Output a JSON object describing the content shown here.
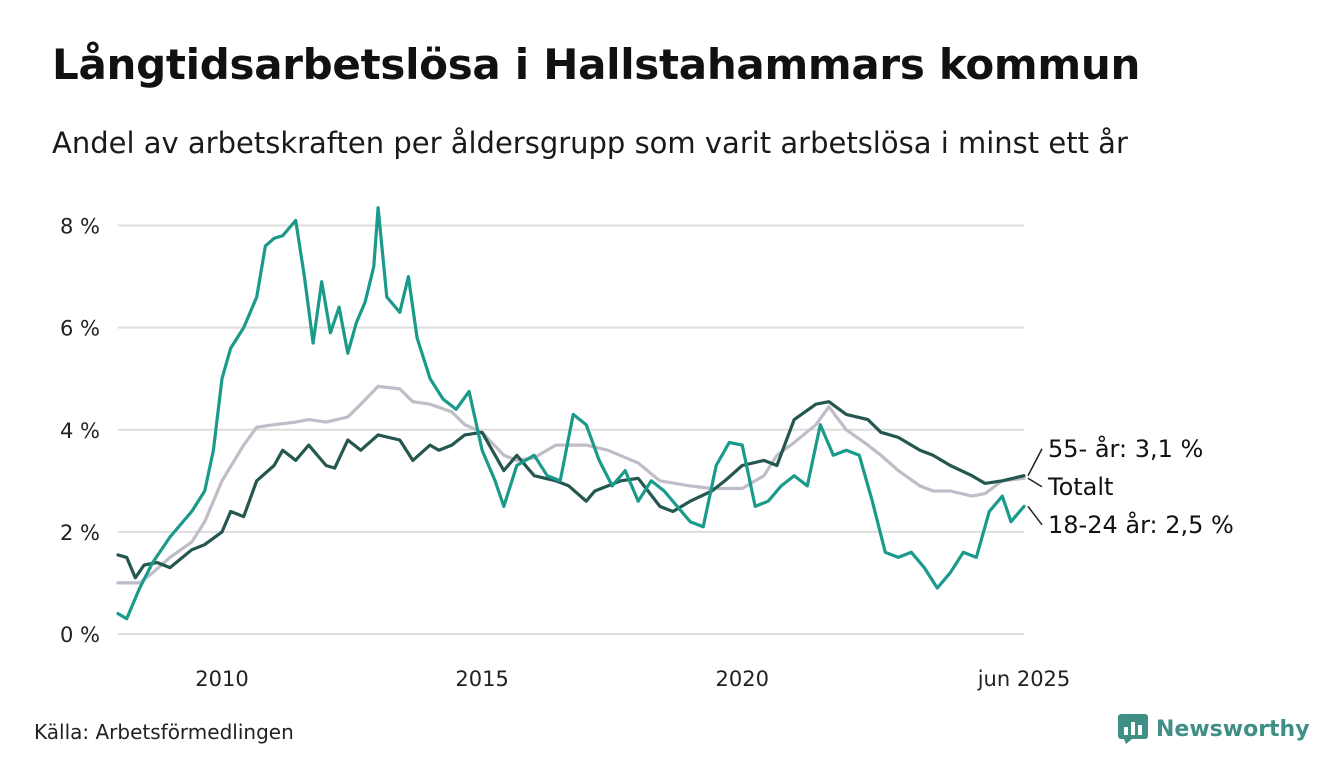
{
  "title": "Långtidsarbetslösa i Hallstahammars kommun",
  "subtitle": "Andel av arbetskraften per åldersgrupp som varit arbetslösa i minst ett år",
  "source": "Källa: Arbetsförmedlingen",
  "brand": {
    "name": "Newsworthy",
    "icon": "newsworthy-logo-icon",
    "color": "#3f8f86"
  },
  "chart_data": {
    "type": "line",
    "title": "Långtidsarbetslösa i Hallstahammars kommun",
    "subtitle": "Andel av arbetskraften per åldersgrupp som varit arbetslösa i minst ett år",
    "xlabel": "",
    "ylabel": "",
    "x_range": [
      "2008-01",
      "2025-06"
    ],
    "ylim": [
      0,
      8.5
    ],
    "y_ticks": [
      0,
      2,
      4,
      6,
      8
    ],
    "y_tick_labels": [
      "0 %",
      "2 %",
      "4 %",
      "6 %",
      "8 %"
    ],
    "x_ticks": [
      {
        "date": "2010-01",
        "label": "2010"
      },
      {
        "date": "2015-01",
        "label": "2015"
      },
      {
        "date": "2020-01",
        "label": "2020"
      },
      {
        "date": "2025-06",
        "label": "jun 2025"
      }
    ],
    "grid": "horizontal",
    "legend": "end-labels",
    "series": [
      {
        "name": "Totalt",
        "end_label": "Totalt",
        "color": "#c0bcc8",
        "points": [
          [
            "2008-01",
            1.0
          ],
          [
            "2008-06",
            1.0
          ],
          [
            "2008-09",
            1.2
          ],
          [
            "2009-01",
            1.5
          ],
          [
            "2009-06",
            1.8
          ],
          [
            "2009-09",
            2.2
          ],
          [
            "2010-01",
            3.0
          ],
          [
            "2010-06",
            3.7
          ],
          [
            "2010-09",
            4.05
          ],
          [
            "2011-01",
            4.1
          ],
          [
            "2011-06",
            4.15
          ],
          [
            "2011-09",
            4.2
          ],
          [
            "2012-01",
            4.15
          ],
          [
            "2012-06",
            4.25
          ],
          [
            "2012-09",
            4.5
          ],
          [
            "2013-01",
            4.85
          ],
          [
            "2013-06",
            4.8
          ],
          [
            "2013-09",
            4.55
          ],
          [
            "2014-01",
            4.5
          ],
          [
            "2014-06",
            4.35
          ],
          [
            "2014-09",
            4.1
          ],
          [
            "2015-01",
            3.95
          ],
          [
            "2015-06",
            3.5
          ],
          [
            "2015-09",
            3.4
          ],
          [
            "2016-01",
            3.45
          ],
          [
            "2016-06",
            3.7
          ],
          [
            "2017-01",
            3.7
          ],
          [
            "2017-06",
            3.6
          ],
          [
            "2018-01",
            3.35
          ],
          [
            "2018-06",
            3.0
          ],
          [
            "2019-01",
            2.9
          ],
          [
            "2019-06",
            2.85
          ],
          [
            "2020-01",
            2.85
          ],
          [
            "2020-06",
            3.1
          ],
          [
            "2020-09",
            3.5
          ],
          [
            "2021-01",
            3.75
          ],
          [
            "2021-06",
            4.1
          ],
          [
            "2021-09",
            4.45
          ],
          [
            "2022-01",
            4.0
          ],
          [
            "2022-06",
            3.7
          ],
          [
            "2022-09",
            3.5
          ],
          [
            "2023-01",
            3.2
          ],
          [
            "2023-06",
            2.9
          ],
          [
            "2023-09",
            2.8
          ],
          [
            "2024-01",
            2.8
          ],
          [
            "2024-06",
            2.7
          ],
          [
            "2024-09",
            2.75
          ],
          [
            "2025-01",
            3.0
          ],
          [
            "2025-06",
            3.05
          ]
        ]
      },
      {
        "name": "55- år",
        "end_label": "55- år: 3,1 %",
        "color": "#24574f",
        "points": [
          [
            "2008-01",
            1.55
          ],
          [
            "2008-03",
            1.5
          ],
          [
            "2008-05",
            1.1
          ],
          [
            "2008-07",
            1.35
          ],
          [
            "2008-10",
            1.4
          ],
          [
            "2009-01",
            1.3
          ],
          [
            "2009-06",
            1.65
          ],
          [
            "2009-09",
            1.75
          ],
          [
            "2010-01",
            2.0
          ],
          [
            "2010-03",
            2.4
          ],
          [
            "2010-06",
            2.3
          ],
          [
            "2010-09",
            3.0
          ],
          [
            "2011-01",
            3.3
          ],
          [
            "2011-03",
            3.6
          ],
          [
            "2011-06",
            3.4
          ],
          [
            "2011-09",
            3.7
          ],
          [
            "2012-01",
            3.3
          ],
          [
            "2012-03",
            3.25
          ],
          [
            "2012-06",
            3.8
          ],
          [
            "2012-09",
            3.6
          ],
          [
            "2013-01",
            3.9
          ],
          [
            "2013-06",
            3.8
          ],
          [
            "2013-09",
            3.4
          ],
          [
            "2014-01",
            3.7
          ],
          [
            "2014-03",
            3.6
          ],
          [
            "2014-06",
            3.7
          ],
          [
            "2014-09",
            3.9
          ],
          [
            "2015-01",
            3.95
          ],
          [
            "2015-06",
            3.2
          ],
          [
            "2015-09",
            3.5
          ],
          [
            "2016-01",
            3.1
          ],
          [
            "2016-06",
            3.0
          ],
          [
            "2016-09",
            2.9
          ],
          [
            "2017-01",
            2.6
          ],
          [
            "2017-03",
            2.8
          ],
          [
            "2017-06",
            2.9
          ],
          [
            "2017-09",
            3.0
          ],
          [
            "2018-01",
            3.05
          ],
          [
            "2018-06",
            2.5
          ],
          [
            "2018-09",
            2.4
          ],
          [
            "2019-01",
            2.6
          ],
          [
            "2019-06",
            2.8
          ],
          [
            "2019-09",
            3.0
          ],
          [
            "2020-01",
            3.3
          ],
          [
            "2020-06",
            3.4
          ],
          [
            "2020-09",
            3.3
          ],
          [
            "2021-01",
            4.2
          ],
          [
            "2021-06",
            4.5
          ],
          [
            "2021-09",
            4.55
          ],
          [
            "2022-01",
            4.3
          ],
          [
            "2022-06",
            4.2
          ],
          [
            "2022-09",
            3.95
          ],
          [
            "2023-01",
            3.85
          ],
          [
            "2023-06",
            3.6
          ],
          [
            "2023-09",
            3.5
          ],
          [
            "2024-01",
            3.3
          ],
          [
            "2024-06",
            3.1
          ],
          [
            "2024-09",
            2.95
          ],
          [
            "2025-01",
            3.0
          ],
          [
            "2025-06",
            3.1
          ]
        ]
      },
      {
        "name": "18-24 år",
        "end_label": "18-24 år: 2,5 %",
        "color": "#1a9a8a",
        "points": [
          [
            "2008-01",
            0.4
          ],
          [
            "2008-03",
            0.3
          ],
          [
            "2008-06",
            0.9
          ],
          [
            "2008-09",
            1.4
          ],
          [
            "2009-01",
            1.9
          ],
          [
            "2009-06",
            2.4
          ],
          [
            "2009-09",
            2.8
          ],
          [
            "2009-11",
            3.6
          ],
          [
            "2010-01",
            5.0
          ],
          [
            "2010-03",
            5.6
          ],
          [
            "2010-06",
            6.0
          ],
          [
            "2010-09",
            6.6
          ],
          [
            "2010-11",
            7.6
          ],
          [
            "2011-01",
            7.75
          ],
          [
            "2011-03",
            7.8
          ],
          [
            "2011-06",
            8.1
          ],
          [
            "2011-08",
            7.0
          ],
          [
            "2011-10",
            5.7
          ],
          [
            "2011-12",
            6.9
          ],
          [
            "2012-02",
            5.9
          ],
          [
            "2012-04",
            6.4
          ],
          [
            "2012-06",
            5.5
          ],
          [
            "2012-08",
            6.1
          ],
          [
            "2012-10",
            6.5
          ],
          [
            "2012-12",
            7.2
          ],
          [
            "2013-01",
            8.35
          ],
          [
            "2013-03",
            6.6
          ],
          [
            "2013-06",
            6.3
          ],
          [
            "2013-08",
            7.0
          ],
          [
            "2013-10",
            5.8
          ],
          [
            "2014-01",
            5.0
          ],
          [
            "2014-04",
            4.6
          ],
          [
            "2014-07",
            4.4
          ],
          [
            "2014-10",
            4.75
          ],
          [
            "2015-01",
            3.6
          ],
          [
            "2015-04",
            3.0
          ],
          [
            "2015-06",
            2.5
          ],
          [
            "2015-09",
            3.3
          ],
          [
            "2016-01",
            3.5
          ],
          [
            "2016-04",
            3.1
          ],
          [
            "2016-07",
            3.0
          ],
          [
            "2016-10",
            4.3
          ],
          [
            "2017-01",
            4.1
          ],
          [
            "2017-04",
            3.4
          ],
          [
            "2017-07",
            2.9
          ],
          [
            "2017-10",
            3.2
          ],
          [
            "2018-01",
            2.6
          ],
          [
            "2018-04",
            3.0
          ],
          [
            "2018-07",
            2.8
          ],
          [
            "2018-10",
            2.5
          ],
          [
            "2019-01",
            2.2
          ],
          [
            "2019-04",
            2.1
          ],
          [
            "2019-07",
            3.3
          ],
          [
            "2019-10",
            3.75
          ],
          [
            "2020-01",
            3.7
          ],
          [
            "2020-04",
            2.5
          ],
          [
            "2020-07",
            2.6
          ],
          [
            "2020-10",
            2.9
          ],
          [
            "2021-01",
            3.1
          ],
          [
            "2021-04",
            2.9
          ],
          [
            "2021-07",
            4.1
          ],
          [
            "2021-10",
            3.5
          ],
          [
            "2022-01",
            3.6
          ],
          [
            "2022-04",
            3.5
          ],
          [
            "2022-07",
            2.6
          ],
          [
            "2022-10",
            1.6
          ],
          [
            "2023-01",
            1.5
          ],
          [
            "2023-04",
            1.6
          ],
          [
            "2023-07",
            1.3
          ],
          [
            "2023-10",
            0.9
          ],
          [
            "2024-01",
            1.2
          ],
          [
            "2024-04",
            1.6
          ],
          [
            "2024-07",
            1.5
          ],
          [
            "2024-10",
            2.4
          ],
          [
            "2025-01",
            2.7
          ],
          [
            "2025-03",
            2.2
          ],
          [
            "2025-06",
            2.5
          ]
        ]
      }
    ]
  }
}
